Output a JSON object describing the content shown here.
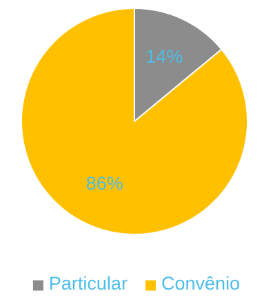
{
  "chart_data": {
    "type": "pie",
    "categories": [
      "Particular",
      "Convênio"
    ],
    "values": [
      14,
      86
    ],
    "value_labels": [
      "14%",
      "86%"
    ],
    "colors": [
      "#8c8c8c",
      "#ffc000"
    ],
    "label_color": "#4dbde8",
    "legend": {
      "position": "bottom",
      "text_color": "#4dbde8"
    },
    "start_angle_deg": 0,
    "direction": "clockwise"
  }
}
